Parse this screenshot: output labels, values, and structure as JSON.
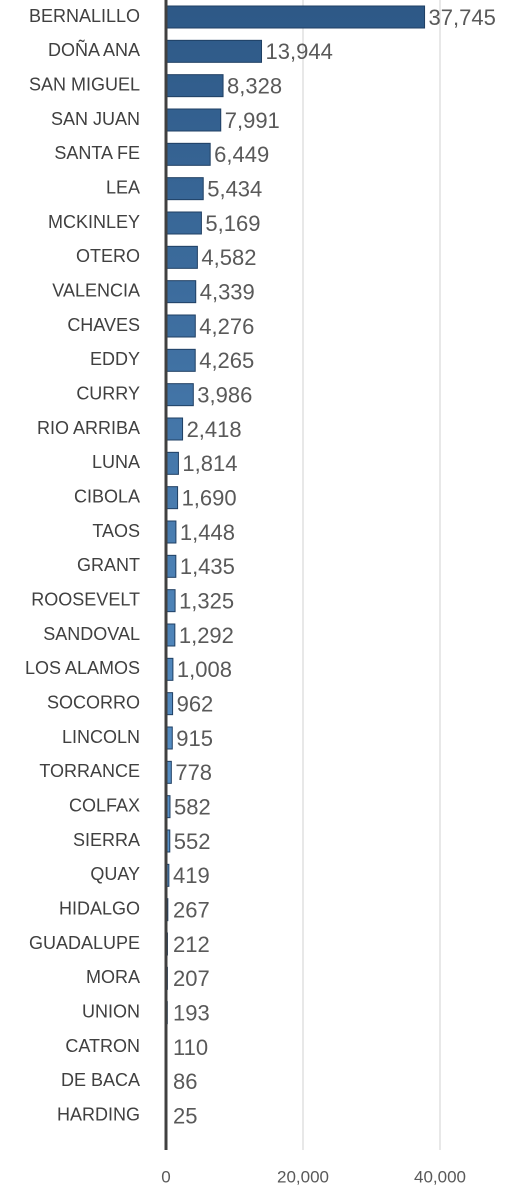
{
  "chart_data": {
    "type": "bar",
    "orientation": "horizontal",
    "categories": [
      "BERNALILLO",
      "DOÑA ANA",
      "SAN MIGUEL",
      "SAN JUAN",
      "SANTA FE",
      "LEA",
      "MCKINLEY",
      "OTERO",
      "VALENCIA",
      "CHAVES",
      "EDDY",
      "CURRY",
      "RIO ARRIBA",
      "LUNA",
      "CIBOLA",
      "TAOS",
      "GRANT",
      "ROOSEVELT",
      "SANDOVAL",
      "LOS ALAMOS",
      "SOCORRO",
      "LINCOLN",
      "TORRANCE",
      "COLFAX",
      "SIERRA",
      "QUAY",
      "HIDALGO",
      "GUADALUPE",
      "MORA",
      "UNION",
      "CATRON",
      "DE BACA",
      "HARDING"
    ],
    "values": [
      37745,
      13944,
      8328,
      7991,
      6449,
      5434,
      5169,
      4582,
      4339,
      4276,
      4265,
      3986,
      2418,
      1814,
      1690,
      1448,
      1435,
      1325,
      1292,
      1008,
      962,
      915,
      778,
      582,
      552,
      419,
      267,
      212,
      207,
      193,
      110,
      86,
      25
    ],
    "value_labels": [
      "37,745",
      "13,944",
      "8,328",
      "7,991",
      "6,449",
      "5,434",
      "5,169",
      "4,582",
      "4,339",
      "4,276",
      "4,265",
      "3,986",
      "2,418",
      "1,814",
      "1,690",
      "1,448",
      "1,435",
      "1,325",
      "1,292",
      "1,008",
      "962",
      "915",
      "778",
      "582",
      "552",
      "419",
      "267",
      "212",
      "207",
      "193",
      "110",
      "86",
      "25"
    ],
    "gradient": [
      "#2d5886",
      "#6aa8e2"
    ],
    "xlim": [
      0,
      40000
    ],
    "xticks": [
      0,
      {
        "value": 20000,
        "label": "20,000"
      },
      {
        "value": 40000,
        "label": "40,000"
      }
    ],
    "grid": true
  }
}
